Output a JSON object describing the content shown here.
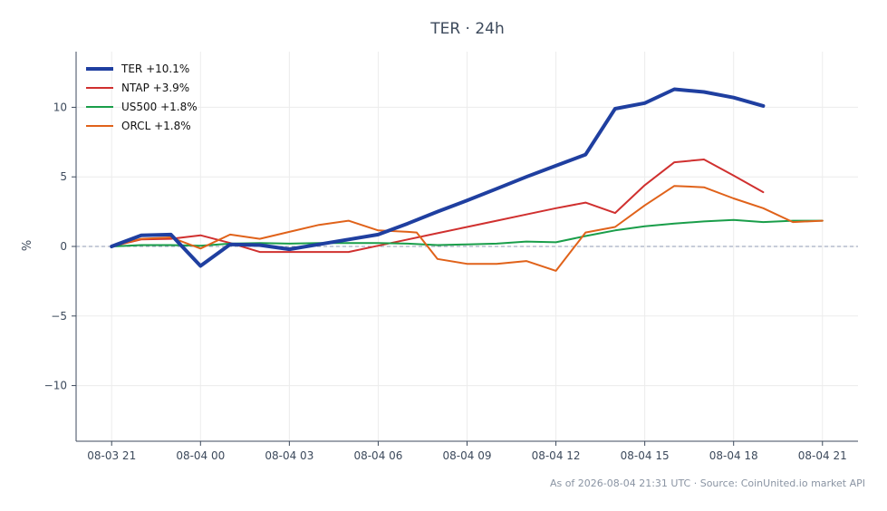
{
  "chart_data": {
    "type": "line",
    "title": "TER · 24h",
    "xlabel": "",
    "ylabel": "%",
    "ylim": [
      -14,
      14
    ],
    "y_ticks": [
      10,
      5,
      0,
      -5,
      -10
    ],
    "y_tick_labels": [
      "10",
      "5",
      "0",
      "−5",
      "−10"
    ],
    "x_ticks": [
      "08-03 21",
      "08-04 00",
      "08-04 03",
      "08-04 06",
      "08-04 09",
      "08-04 12",
      "08-04 15",
      "08-04 18",
      "08-04 21"
    ],
    "x_hours": [
      0,
      3,
      6,
      9,
      12,
      15,
      18,
      21,
      24
    ],
    "x_range_hours": [
      -1.2,
      25.2
    ],
    "zero_line": true,
    "grid": true,
    "legend": "top-left",
    "series": [
      {
        "name": "TER +10.1%",
        "color": "#1f3fa0",
        "width": 4,
        "points": [
          [
            0,
            0
          ],
          [
            1,
            0.8
          ],
          [
            2,
            0.85
          ],
          [
            3,
            -1.4
          ],
          [
            4,
            0.15
          ],
          [
            5,
            0.1
          ],
          [
            6,
            -0.2
          ],
          [
            7,
            0.15
          ],
          [
            8,
            0.5
          ],
          [
            9,
            0.85
          ],
          [
            10,
            1.65
          ],
          [
            11,
            2.5
          ],
          [
            12,
            3.3
          ],
          [
            13,
            4.15
          ],
          [
            14,
            5.0
          ],
          [
            15,
            5.8
          ],
          [
            16,
            6.6
          ],
          [
            17,
            9.9
          ],
          [
            18,
            10.3
          ],
          [
            19,
            11.3
          ],
          [
            20,
            11.1
          ],
          [
            21,
            10.7
          ],
          [
            22,
            10.1
          ]
        ]
      },
      {
        "name": "NTAP +3.9%",
        "color": "#d0302f",
        "width": 2,
        "points": [
          [
            0,
            0
          ],
          [
            1,
            0.5
          ],
          [
            2,
            0.55
          ],
          [
            3,
            0.8
          ],
          [
            4,
            0.25
          ],
          [
            5,
            -0.4
          ],
          [
            6,
            -0.4
          ],
          [
            7,
            -0.4
          ],
          [
            8,
            -0.4
          ],
          [
            9,
            0.05
          ],
          [
            10,
            0.5
          ],
          [
            11,
            0.95
          ],
          [
            12,
            1.4
          ],
          [
            13,
            1.85
          ],
          [
            14,
            2.3
          ],
          [
            15,
            2.75
          ],
          [
            16,
            3.15
          ],
          [
            17,
            2.4
          ],
          [
            18,
            4.4
          ],
          [
            19,
            6.05
          ],
          [
            20,
            6.25
          ],
          [
            21,
            5.1
          ],
          [
            22,
            3.9
          ]
        ]
      },
      {
        "name": "US500 +1.8%",
        "color": "#1a9e4a",
        "width": 2,
        "points": [
          [
            0,
            0
          ],
          [
            1,
            0.1
          ],
          [
            2,
            0.1
          ],
          [
            3,
            0.05
          ],
          [
            4,
            0.2
          ],
          [
            5,
            0.25
          ],
          [
            6,
            0.2
          ],
          [
            7,
            0.25
          ],
          [
            8,
            0.25
          ],
          [
            9,
            0.25
          ],
          [
            10,
            0.2
          ],
          [
            11,
            0.1
          ],
          [
            12,
            0.15
          ],
          [
            13,
            0.2
          ],
          [
            14,
            0.35
          ],
          [
            15,
            0.3
          ],
          [
            16,
            0.75
          ],
          [
            17,
            1.15
          ],
          [
            18,
            1.45
          ],
          [
            19,
            1.65
          ],
          [
            20,
            1.8
          ],
          [
            21,
            1.9
          ],
          [
            22,
            1.75
          ],
          [
            23,
            1.85
          ],
          [
            24,
            1.85
          ]
        ]
      },
      {
        "name": "ORCL +1.8%",
        "color": "#e0621a",
        "width": 2,
        "points": [
          [
            0,
            0
          ],
          [
            1,
            0.55
          ],
          [
            2,
            0.65
          ],
          [
            3,
            -0.15
          ],
          [
            4,
            0.85
          ],
          [
            5,
            0.55
          ],
          [
            6,
            1.05
          ],
          [
            7,
            1.55
          ],
          [
            8,
            1.85
          ],
          [
            9,
            1.15
          ],
          [
            10,
            1.05
          ],
          [
            10.3,
            1.0
          ],
          [
            11,
            -0.9
          ],
          [
            12,
            -1.25
          ],
          [
            13,
            -1.25
          ],
          [
            14,
            -1.05
          ],
          [
            15,
            -1.75
          ],
          [
            16,
            1.0
          ],
          [
            17,
            1.4
          ],
          [
            18,
            2.95
          ],
          [
            19,
            4.35
          ],
          [
            20,
            4.25
          ],
          [
            21,
            3.45
          ],
          [
            22,
            2.75
          ],
          [
            23,
            1.75
          ],
          [
            24,
            1.85
          ]
        ]
      }
    ]
  },
  "footer": "As of 2026-08-04 21:31 UTC · Source: CoinUnited.io market API"
}
